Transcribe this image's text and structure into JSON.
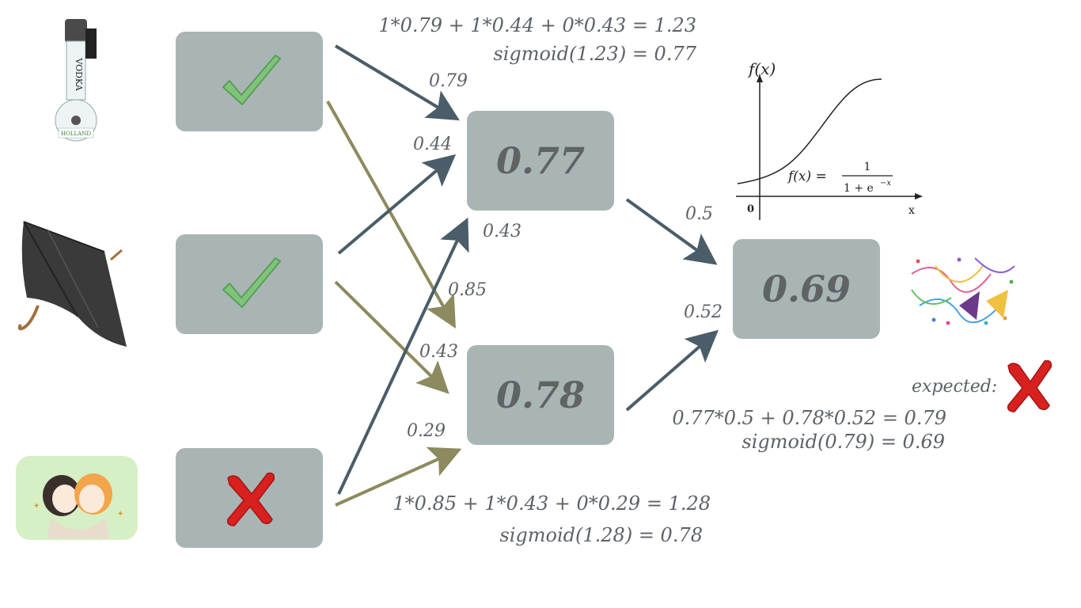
{
  "inputs": [
    {
      "name": "vodka",
      "state": "check",
      "bottle_text": "VODKA",
      "brand_text": "HOLLAND"
    },
    {
      "name": "umbrella",
      "state": "check"
    },
    {
      "name": "friends",
      "state": "cross"
    }
  ],
  "hidden": [
    {
      "value": "0.77"
    },
    {
      "value": "0.78"
    }
  ],
  "output": {
    "value": "0.69"
  },
  "weights": {
    "w11": "0.79",
    "w21": "0.44",
    "w31": "0.43",
    "w12": "0.85",
    "w22": "0.43",
    "w32": "0.29",
    "wh1": "0.5",
    "wh2": "0.52"
  },
  "equations": {
    "h1_sum": "1*0.79 + 1*0.44 + 0*0.43 = 1.23",
    "h1_sig": "sigmoid(1.23) = 0.77",
    "h2_sum": "1*0.85 + 1*0.43 + 0*0.29 = 1.28",
    "h2_sig": "sigmoid(1.28) = 0.78",
    "o_sum": "0.77*0.5 + 0.78*0.52 = 0.79",
    "o_sig": "sigmoid(0.79) = 0.69"
  },
  "expected_label": "expected:",
  "sigmoid_plot": {
    "ylabel": "f(x)",
    "xlabel": "x",
    "origin": "0",
    "formula_lhs": "f(x) =",
    "formula_num": "1",
    "formula_den": "1 + e",
    "formula_exp": "−x"
  },
  "colors": {
    "box": "#a9b5b5",
    "arrow_dark": "#4a5d69",
    "arrow_olive": "#8c8a5e",
    "check": "#7fc47a",
    "cross": "#d8201f"
  }
}
